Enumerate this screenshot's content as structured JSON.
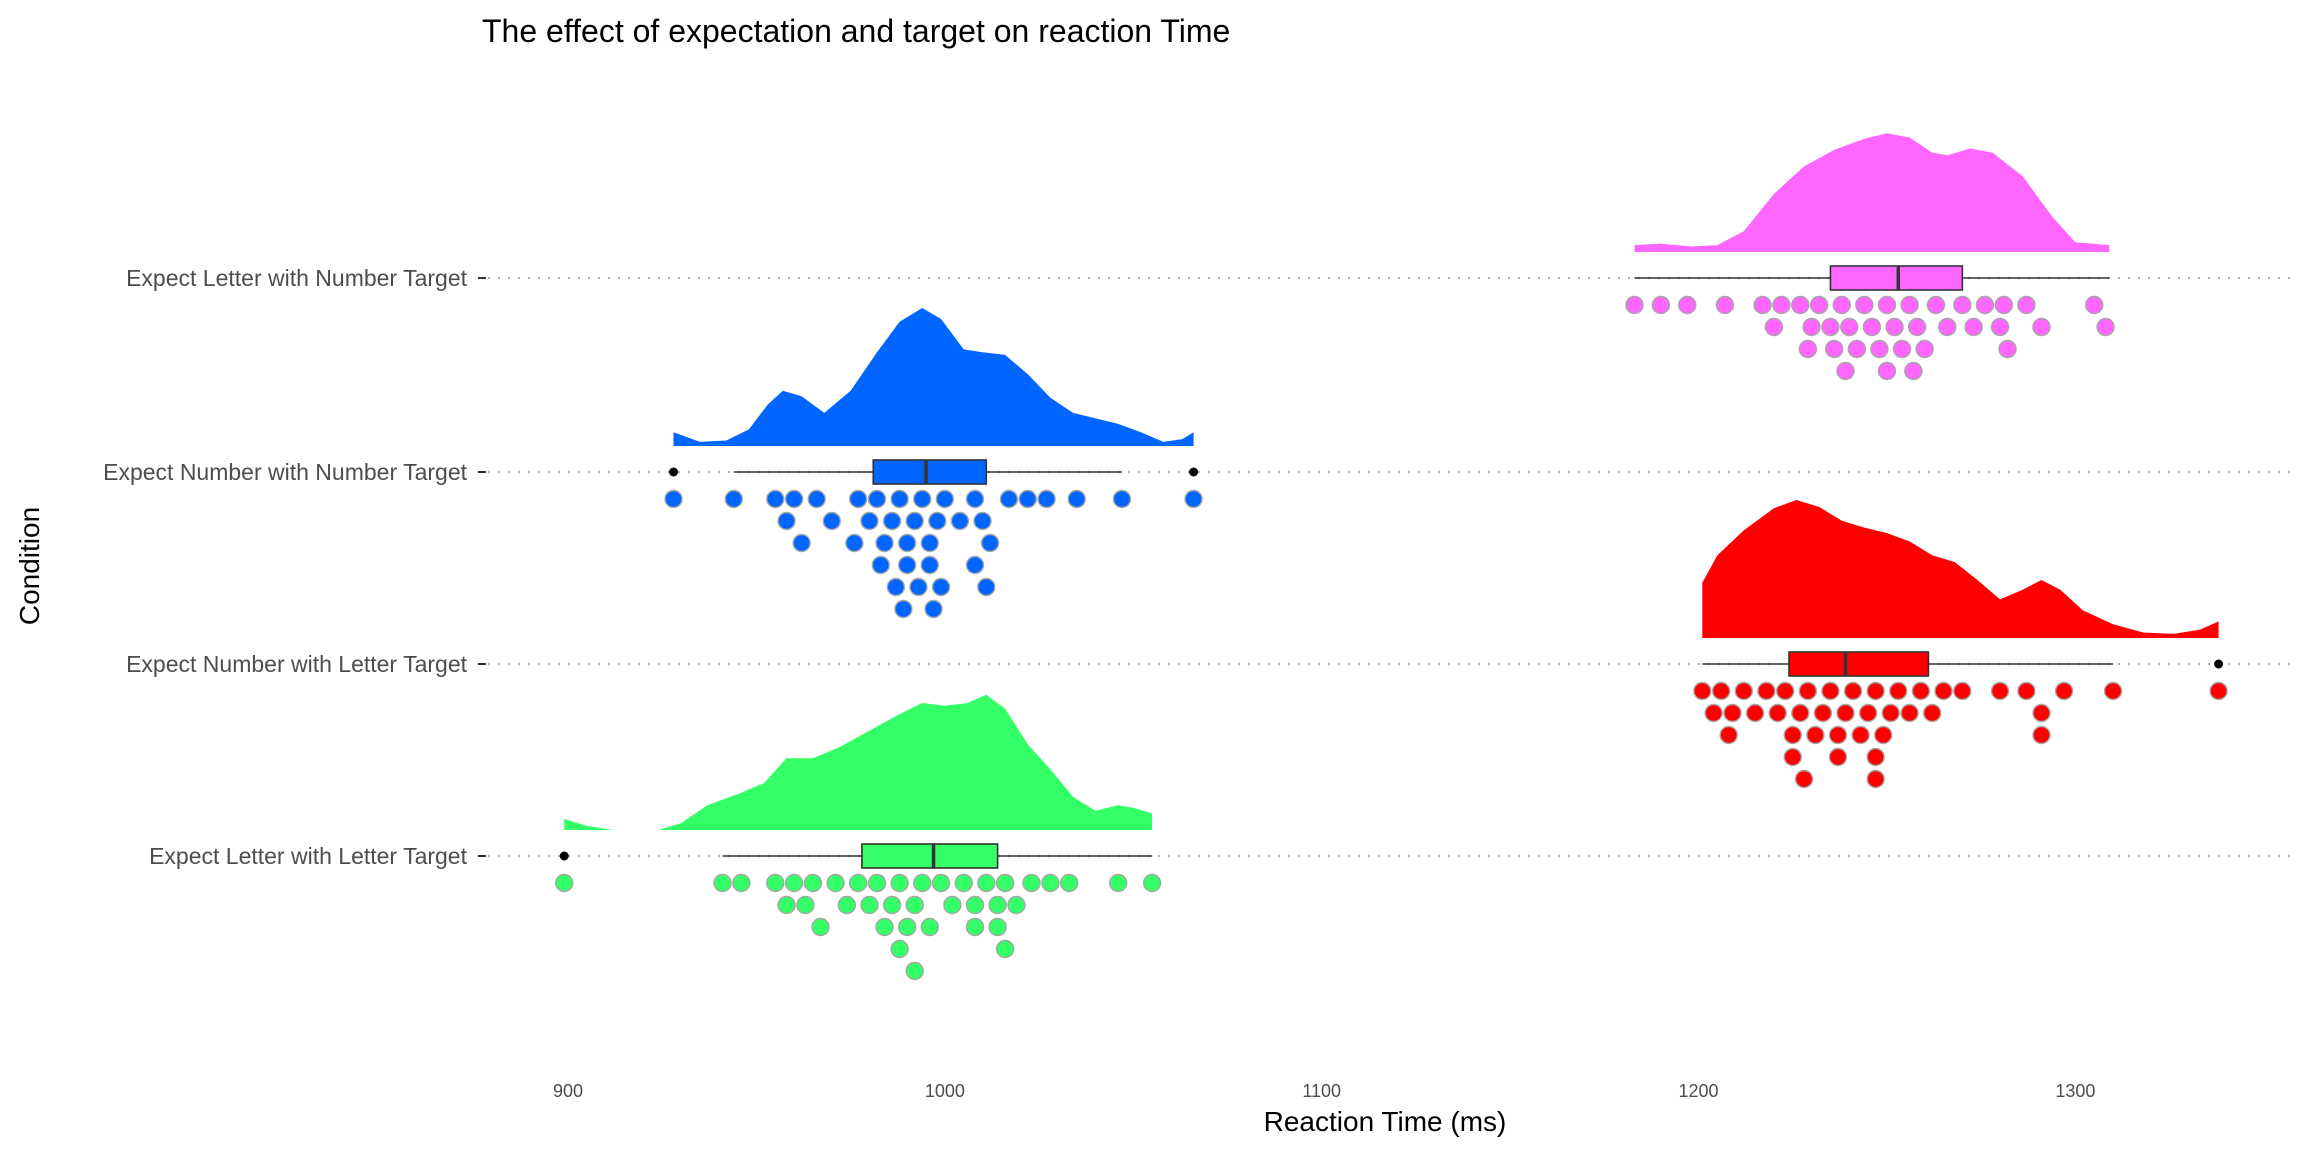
{
  "chart_data": {
    "type": "raincloud",
    "title": "The effect of expectation and target on reaction Time",
    "xlabel": "Reaction Time (ms)",
    "ylabel": "Condition",
    "xlim": [
      880,
      1360
    ],
    "xticks": [
      900,
      1000,
      1100,
      1200,
      1300
    ],
    "grid": "horizontal dotted",
    "categories": [
      "Expect Letter with Number Target",
      "Expect Number with Number Target",
      "Expect Number with Letter Target",
      "Expect Letter with Letter Target"
    ],
    "series": [
      {
        "category": "Expect Letter with Number Target",
        "color": "#ff66ff",
        "box": {
          "min": 1183,
          "q1": 1235,
          "median": 1253,
          "q3": 1270,
          "max": 1309
        },
        "outliers": [],
        "density": [
          [
            1183,
            0.05
          ],
          [
            1190,
            0.06
          ],
          [
            1198,
            0.04
          ],
          [
            1205,
            0.05
          ],
          [
            1212,
            0.15
          ],
          [
            1220,
            0.42
          ],
          [
            1228,
            0.62
          ],
          [
            1236,
            0.74
          ],
          [
            1244,
            0.82
          ],
          [
            1250,
            0.86
          ],
          [
            1256,
            0.83
          ],
          [
            1262,
            0.72
          ],
          [
            1266,
            0.7
          ],
          [
            1272,
            0.75
          ],
          [
            1278,
            0.72
          ],
          [
            1286,
            0.55
          ],
          [
            1294,
            0.25
          ],
          [
            1300,
            0.07
          ],
          [
            1309,
            0.05
          ]
        ],
        "points": [
          1183,
          1190,
          1197,
          1207,
          1217,
          1220,
          1222,
          1227,
          1230,
          1232,
          1235,
          1238,
          1240,
          1242,
          1244,
          1246,
          1248,
          1250,
          1252,
          1254,
          1256,
          1258,
          1260,
          1263,
          1266,
          1270,
          1273,
          1276,
          1280,
          1287,
          1291,
          1305,
          1308,
          1229,
          1236,
          1239,
          1250,
          1257,
          1281,
          1282
        ]
      },
      {
        "category": "Expect Number with Number Target",
        "color": "#0066ff",
        "box": {
          "min": 944,
          "q1": 981,
          "median": 995,
          "q3": 1011,
          "max": 1047
        },
        "outliers": [
          928,
          1066
        ],
        "density": [
          [
            928,
            0.1
          ],
          [
            935,
            0.03
          ],
          [
            942,
            0.04
          ],
          [
            948,
            0.12
          ],
          [
            953,
            0.3
          ],
          [
            957,
            0.4
          ],
          [
            962,
            0.36
          ],
          [
            968,
            0.24
          ],
          [
            975,
            0.4
          ],
          [
            982,
            0.68
          ],
          [
            988,
            0.9
          ],
          [
            994,
            1.0
          ],
          [
            999,
            0.92
          ],
          [
            1005,
            0.7
          ],
          [
            1010,
            0.68
          ],
          [
            1016,
            0.66
          ],
          [
            1022,
            0.52
          ],
          [
            1028,
            0.35
          ],
          [
            1034,
            0.24
          ],
          [
            1040,
            0.2
          ],
          [
            1046,
            0.16
          ],
          [
            1052,
            0.1
          ],
          [
            1058,
            0.03
          ],
          [
            1063,
            0.05
          ],
          [
            1066,
            0.1
          ]
        ],
        "points": [
          928,
          944,
          955,
          958,
          960,
          962,
          966,
          970,
          977,
          980,
          982,
          984,
          986,
          988,
          990,
          992,
          994,
          996,
          998,
          1000,
          1004,
          1008,
          1010,
          1012,
          1017,
          1022,
          1027,
          1035,
          1047,
          1066,
          976,
          983,
          987,
          990,
          993,
          996,
          999,
          1008,
          1011,
          989,
          997
        ]
      },
      {
        "category": "Expect Number with Letter Target",
        "color": "#ff0000",
        "box": {
          "min": 1201,
          "q1": 1224,
          "median": 1239,
          "q3": 1261,
          "max": 1310
        },
        "outliers": [
          1338
        ],
        "density": [
          [
            1201,
            0.4
          ],
          [
            1205,
            0.6
          ],
          [
            1212,
            0.78
          ],
          [
            1220,
            0.94
          ],
          [
            1226,
            1.0
          ],
          [
            1232,
            0.95
          ],
          [
            1238,
            0.85
          ],
          [
            1244,
            0.8
          ],
          [
            1250,
            0.76
          ],
          [
            1256,
            0.7
          ],
          [
            1262,
            0.6
          ],
          [
            1268,
            0.55
          ],
          [
            1274,
            0.42
          ],
          [
            1280,
            0.28
          ],
          [
            1286,
            0.35
          ],
          [
            1291,
            0.42
          ],
          [
            1296,
            0.35
          ],
          [
            1302,
            0.2
          ],
          [
            1310,
            0.1
          ],
          [
            1318,
            0.04
          ],
          [
            1326,
            0.03
          ],
          [
            1333,
            0.06
          ],
          [
            1338,
            0.12
          ]
        ],
        "points": [
          1201,
          1204,
          1206,
          1209,
          1212,
          1215,
          1218,
          1221,
          1223,
          1225,
          1227,
          1229,
          1231,
          1233,
          1235,
          1237,
          1239,
          1241,
          1243,
          1245,
          1247,
          1249,
          1251,
          1253,
          1256,
          1259,
          1262,
          1265,
          1270,
          1280,
          1287,
          1291,
          1297,
          1310,
          1338,
          1208,
          1225,
          1228,
          1237,
          1247,
          1291,
          1247
        ]
      },
      {
        "category": "Expect Letter with Letter Target",
        "color": "#33ff66",
        "box": {
          "min": 941,
          "q1": 978,
          "median": 997,
          "q3": 1014,
          "max": 1055
        },
        "outliers": [
          899
        ],
        "density": [
          [
            899,
            0.08
          ],
          [
            905,
            0.03
          ],
          [
            912,
            0.0
          ],
          [
            918,
            0.0
          ],
          [
            924,
            0.0
          ],
          [
            930,
            0.05
          ],
          [
            937,
            0.18
          ],
          [
            945,
            0.26
          ],
          [
            952,
            0.34
          ],
          [
            958,
            0.52
          ],
          [
            965,
            0.52
          ],
          [
            972,
            0.6
          ],
          [
            980,
            0.72
          ],
          [
            988,
            0.84
          ],
          [
            994,
            0.92
          ],
          [
            1000,
            0.9
          ],
          [
            1006,
            0.92
          ],
          [
            1011,
            0.98
          ],
          [
            1016,
            0.88
          ],
          [
            1022,
            0.62
          ],
          [
            1028,
            0.44
          ],
          [
            1034,
            0.24
          ],
          [
            1040,
            0.14
          ],
          [
            1046,
            0.18
          ],
          [
            1050,
            0.16
          ],
          [
            1055,
            0.12
          ]
        ],
        "points": [
          899,
          941,
          946,
          955,
          958,
          960,
          963,
          965,
          967,
          971,
          974,
          977,
          980,
          982,
          984,
          986,
          988,
          990,
          992,
          994,
          996,
          999,
          1002,
          1005,
          1008,
          1011,
          1014,
          1016,
          1019,
          1023,
          1028,
          1033,
          1046,
          1055,
          988,
          992,
          1008,
          1014,
          1016
        ]
      }
    ]
  }
}
